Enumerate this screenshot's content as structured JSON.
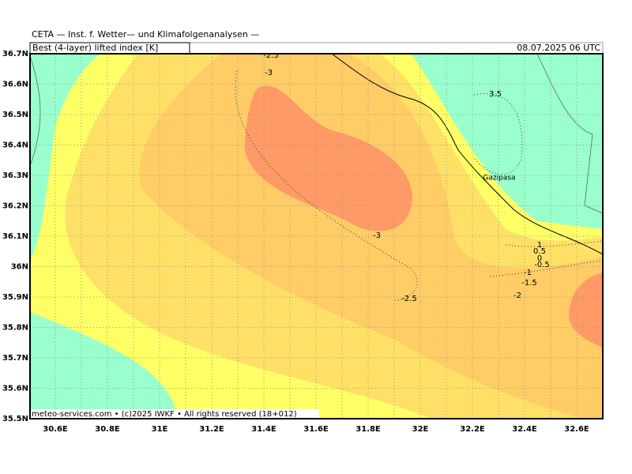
{
  "header": {
    "institute": "CETA — Inst. f. Wetter— und Klimafolgenanalysen —",
    "parameter": "Best (4-layer) lifted index [K]",
    "datetime": "08.07.2025 06 UTC"
  },
  "axes": {
    "y_labels": [
      "36.7N",
      "36.6N",
      "36.5N",
      "36.4N",
      "36.3N",
      "36.2N",
      "36.1N",
      "36N",
      "35.9N",
      "35.8N",
      "35.7N",
      "35.6N",
      "35.5N"
    ],
    "x_labels": [
      "30.6E",
      "30.8E",
      "31E",
      "31.2E",
      "31.4E",
      "31.6E",
      "31.8E",
      "32E",
      "32.2E",
      "32.4E",
      "32.6E"
    ]
  },
  "contour_labels": [
    "-2.5",
    "-3",
    "3.5",
    "-3",
    "-2.5",
    "1",
    "0.5",
    "0",
    "-0.5",
    "-1",
    "-1.5",
    "-2"
  ],
  "places": [
    "Gazipasa"
  ],
  "footer": "meteo-services.com • (c)2025 IWKF • All rights reserved (18+012)"
}
